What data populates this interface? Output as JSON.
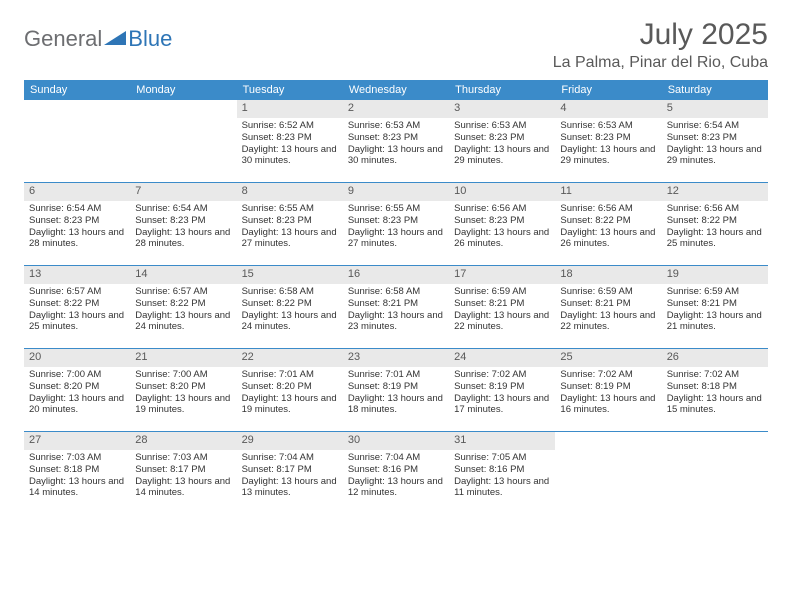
{
  "logo": {
    "part1": "General",
    "part2": "Blue"
  },
  "title": "July 2025",
  "location": "La Palma, Pinar del Rio, Cuba",
  "colors": {
    "header_bg": "#3b8bc9",
    "daynum_bg": "#e9e9e9",
    "text_gray": "#595959",
    "logo_blue": "#2e75b6"
  },
  "dow": [
    "Sunday",
    "Monday",
    "Tuesday",
    "Wednesday",
    "Thursday",
    "Friday",
    "Saturday"
  ],
  "weeks": [
    [
      null,
      null,
      {
        "n": "1",
        "sr": "Sunrise: 6:52 AM",
        "ss": "Sunset: 8:23 PM",
        "dl": "Daylight: 13 hours and 30 minutes."
      },
      {
        "n": "2",
        "sr": "Sunrise: 6:53 AM",
        "ss": "Sunset: 8:23 PM",
        "dl": "Daylight: 13 hours and 30 minutes."
      },
      {
        "n": "3",
        "sr": "Sunrise: 6:53 AM",
        "ss": "Sunset: 8:23 PM",
        "dl": "Daylight: 13 hours and 29 minutes."
      },
      {
        "n": "4",
        "sr": "Sunrise: 6:53 AM",
        "ss": "Sunset: 8:23 PM",
        "dl": "Daylight: 13 hours and 29 minutes."
      },
      {
        "n": "5",
        "sr": "Sunrise: 6:54 AM",
        "ss": "Sunset: 8:23 PM",
        "dl": "Daylight: 13 hours and 29 minutes."
      }
    ],
    [
      {
        "n": "6",
        "sr": "Sunrise: 6:54 AM",
        "ss": "Sunset: 8:23 PM",
        "dl": "Daylight: 13 hours and 28 minutes."
      },
      {
        "n": "7",
        "sr": "Sunrise: 6:54 AM",
        "ss": "Sunset: 8:23 PM",
        "dl": "Daylight: 13 hours and 28 minutes."
      },
      {
        "n": "8",
        "sr": "Sunrise: 6:55 AM",
        "ss": "Sunset: 8:23 PM",
        "dl": "Daylight: 13 hours and 27 minutes."
      },
      {
        "n": "9",
        "sr": "Sunrise: 6:55 AM",
        "ss": "Sunset: 8:23 PM",
        "dl": "Daylight: 13 hours and 27 minutes."
      },
      {
        "n": "10",
        "sr": "Sunrise: 6:56 AM",
        "ss": "Sunset: 8:23 PM",
        "dl": "Daylight: 13 hours and 26 minutes."
      },
      {
        "n": "11",
        "sr": "Sunrise: 6:56 AM",
        "ss": "Sunset: 8:22 PM",
        "dl": "Daylight: 13 hours and 26 minutes."
      },
      {
        "n": "12",
        "sr": "Sunrise: 6:56 AM",
        "ss": "Sunset: 8:22 PM",
        "dl": "Daylight: 13 hours and 25 minutes."
      }
    ],
    [
      {
        "n": "13",
        "sr": "Sunrise: 6:57 AM",
        "ss": "Sunset: 8:22 PM",
        "dl": "Daylight: 13 hours and 25 minutes."
      },
      {
        "n": "14",
        "sr": "Sunrise: 6:57 AM",
        "ss": "Sunset: 8:22 PM",
        "dl": "Daylight: 13 hours and 24 minutes."
      },
      {
        "n": "15",
        "sr": "Sunrise: 6:58 AM",
        "ss": "Sunset: 8:22 PM",
        "dl": "Daylight: 13 hours and 24 minutes."
      },
      {
        "n": "16",
        "sr": "Sunrise: 6:58 AM",
        "ss": "Sunset: 8:21 PM",
        "dl": "Daylight: 13 hours and 23 minutes."
      },
      {
        "n": "17",
        "sr": "Sunrise: 6:59 AM",
        "ss": "Sunset: 8:21 PM",
        "dl": "Daylight: 13 hours and 22 minutes."
      },
      {
        "n": "18",
        "sr": "Sunrise: 6:59 AM",
        "ss": "Sunset: 8:21 PM",
        "dl": "Daylight: 13 hours and 22 minutes."
      },
      {
        "n": "19",
        "sr": "Sunrise: 6:59 AM",
        "ss": "Sunset: 8:21 PM",
        "dl": "Daylight: 13 hours and 21 minutes."
      }
    ],
    [
      {
        "n": "20",
        "sr": "Sunrise: 7:00 AM",
        "ss": "Sunset: 8:20 PM",
        "dl": "Daylight: 13 hours and 20 minutes."
      },
      {
        "n": "21",
        "sr": "Sunrise: 7:00 AM",
        "ss": "Sunset: 8:20 PM",
        "dl": "Daylight: 13 hours and 19 minutes."
      },
      {
        "n": "22",
        "sr": "Sunrise: 7:01 AM",
        "ss": "Sunset: 8:20 PM",
        "dl": "Daylight: 13 hours and 19 minutes."
      },
      {
        "n": "23",
        "sr": "Sunrise: 7:01 AM",
        "ss": "Sunset: 8:19 PM",
        "dl": "Daylight: 13 hours and 18 minutes."
      },
      {
        "n": "24",
        "sr": "Sunrise: 7:02 AM",
        "ss": "Sunset: 8:19 PM",
        "dl": "Daylight: 13 hours and 17 minutes."
      },
      {
        "n": "25",
        "sr": "Sunrise: 7:02 AM",
        "ss": "Sunset: 8:19 PM",
        "dl": "Daylight: 13 hours and 16 minutes."
      },
      {
        "n": "26",
        "sr": "Sunrise: 7:02 AM",
        "ss": "Sunset: 8:18 PM",
        "dl": "Daylight: 13 hours and 15 minutes."
      }
    ],
    [
      {
        "n": "27",
        "sr": "Sunrise: 7:03 AM",
        "ss": "Sunset: 8:18 PM",
        "dl": "Daylight: 13 hours and 14 minutes."
      },
      {
        "n": "28",
        "sr": "Sunrise: 7:03 AM",
        "ss": "Sunset: 8:17 PM",
        "dl": "Daylight: 13 hours and 14 minutes."
      },
      {
        "n": "29",
        "sr": "Sunrise: 7:04 AM",
        "ss": "Sunset: 8:17 PM",
        "dl": "Daylight: 13 hours and 13 minutes."
      },
      {
        "n": "30",
        "sr": "Sunrise: 7:04 AM",
        "ss": "Sunset: 8:16 PM",
        "dl": "Daylight: 13 hours and 12 minutes."
      },
      {
        "n": "31",
        "sr": "Sunrise: 7:05 AM",
        "ss": "Sunset: 8:16 PM",
        "dl": "Daylight: 13 hours and 11 minutes."
      },
      null,
      null
    ]
  ]
}
